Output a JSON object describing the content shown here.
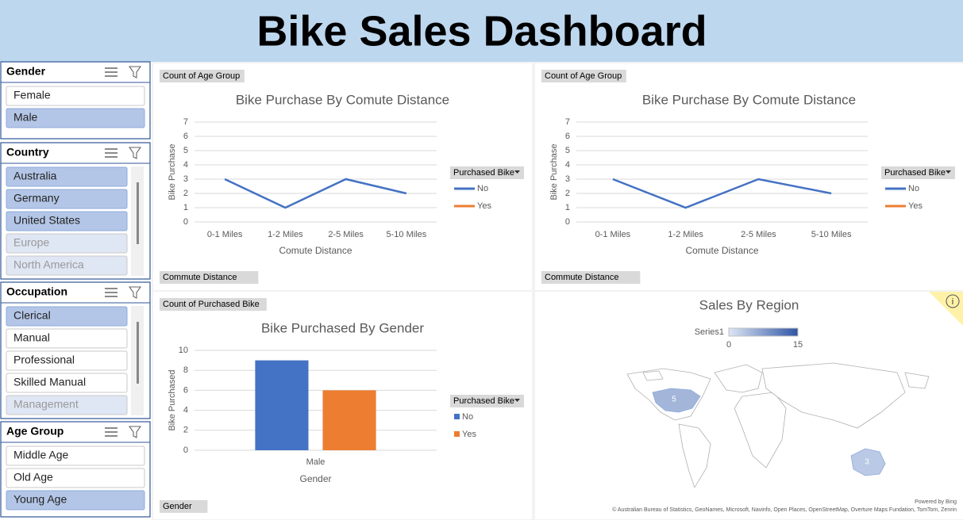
{
  "header": {
    "title": "Bike Sales Dashboard"
  },
  "slicers": [
    {
      "title": "Gender",
      "scrollbar": false,
      "items": [
        {
          "label": "Female",
          "state": "unselected"
        },
        {
          "label": "Male",
          "state": "selected"
        }
      ]
    },
    {
      "title": "Country",
      "scrollbar": true,
      "items": [
        {
          "label": "Australia",
          "state": "selected"
        },
        {
          "label": "Germany",
          "state": "selected"
        },
        {
          "label": "United States",
          "state": "selected"
        },
        {
          "label": "Europe",
          "state": "dimmed"
        },
        {
          "label": "North America",
          "state": "dimmed"
        }
      ]
    },
    {
      "title": "Occupation",
      "scrollbar": true,
      "items": [
        {
          "label": "Clerical",
          "state": "selected"
        },
        {
          "label": "Manual",
          "state": "unselected"
        },
        {
          "label": "Professional",
          "state": "unselected"
        },
        {
          "label": "Skilled Manual",
          "state": "unselected"
        },
        {
          "label": "Management",
          "state": "dimmed"
        }
      ]
    },
    {
      "title": "Age Group",
      "scrollbar": false,
      "items": [
        {
          "label": "Middle Age",
          "state": "unselected"
        },
        {
          "label": "Old Age",
          "state": "unselected"
        },
        {
          "label": "Young Age",
          "state": "selected"
        }
      ]
    }
  ],
  "chart_data": [
    {
      "type": "line",
      "tag": "Count of Age Group",
      "title": "Bike Purchase By Comute Distance",
      "x_label": "Comute Distance",
      "y_label": "Bike Purchase",
      "categories": [
        "0-1 Miles",
        "1-2 Miles",
        "2-5 Miles",
        "5-10 Miles"
      ],
      "series": [
        {
          "name": "No",
          "color": "#4472c4",
          "values": [
            3,
            1,
            3,
            2
          ]
        },
        {
          "name": "Yes",
          "color": "#ed7d31",
          "values": [
            null,
            null,
            null,
            null
          ]
        }
      ],
      "ylim": [
        0,
        7
      ],
      "yticks": [
        0,
        1,
        2,
        3,
        4,
        5,
        6,
        7
      ],
      "grid": true,
      "legend_title": "Purchased Bike",
      "field_button": "Commute Distance"
    },
    {
      "type": "line",
      "tag": "Count of Age Group",
      "title": "Bike Purchase By Comute Distance",
      "x_label": "Comute Distance",
      "y_label": "Bike Purchase",
      "categories": [
        "0-1 Miles",
        "1-2 Miles",
        "2-5 Miles",
        "5-10 Miles"
      ],
      "series": [
        {
          "name": "No",
          "color": "#4472c4",
          "values": [
            3,
            1,
            3,
            2
          ]
        },
        {
          "name": "Yes",
          "color": "#ed7d31",
          "values": [
            null,
            null,
            null,
            null
          ]
        }
      ],
      "ylim": [
        0,
        7
      ],
      "yticks": [
        0,
        1,
        2,
        3,
        4,
        5,
        6,
        7
      ],
      "grid": true,
      "legend_title": "Purchased Bike",
      "field_button": "Commute Distance"
    },
    {
      "type": "bar",
      "tag": "Count of Purchased Bike",
      "title": "Bike Purchased By Gender",
      "x_label": "Gender",
      "y_label": "Bike Purchased",
      "categories": [
        "Male"
      ],
      "series": [
        {
          "name": "No",
          "color": "#4472c4",
          "values": [
            9
          ]
        },
        {
          "name": "Yes",
          "color": "#ed7d31",
          "values": [
            6
          ]
        }
      ],
      "ylim": [
        0,
        10
      ],
      "yticks": [
        0,
        2,
        4,
        6,
        8,
        10
      ],
      "grid": true,
      "legend_title": "Purchased Bike",
      "field_button": "Gender"
    },
    {
      "type": "map",
      "title": "Sales By Region",
      "legend_name": "Series1",
      "scale": [
        0,
        15
      ],
      "values": [
        5,
        3
      ],
      "credit": "Powered by Bing",
      "attribution": "© Australian Bureau of Statistics, GeoNames, Microsoft, Navinfo, Open Places, OpenStreetMap, Overture Maps Fundation, TomTom, Zenrin"
    }
  ]
}
